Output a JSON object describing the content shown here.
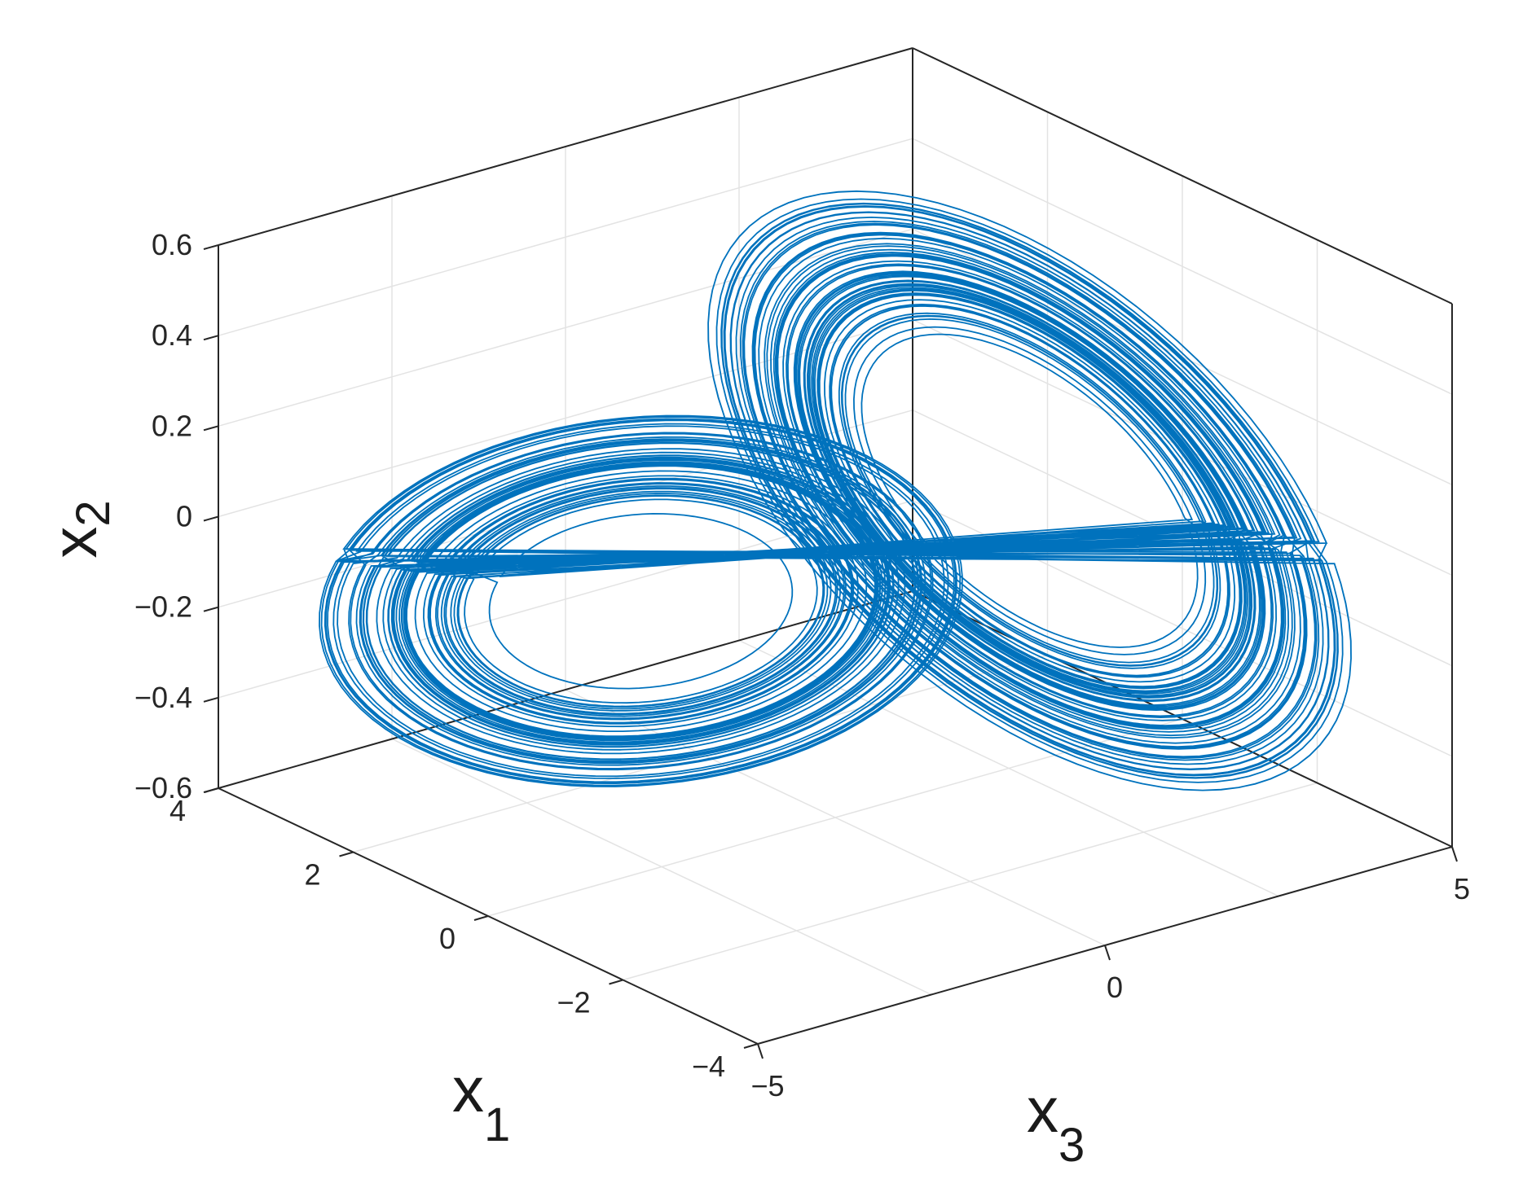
{
  "chart_data": {
    "type": "line",
    "title": "",
    "subtitle": "",
    "xlabel": {
      "main": "x",
      "sub": "1"
    },
    "ylabel": {
      "main": "x",
      "sub": "2"
    },
    "zlabel": {
      "main": "x",
      "sub": "3"
    },
    "x1_axis": {
      "label_main": "x",
      "label_sub": "1",
      "lim": [
        -4,
        4
      ],
      "ticks": [
        4,
        2,
        0,
        -2,
        -4
      ],
      "tick_labels": [
        "4",
        "2",
        "0",
        "−2",
        "−4"
      ]
    },
    "x2_axis": {
      "label_main": "x",
      "label_sub": "2",
      "lim": [
        -0.6,
        0.6
      ],
      "ticks": [
        0.6,
        0.4,
        0.2,
        0,
        -0.2,
        -0.4,
        -0.6
      ],
      "tick_labels": [
        "0.6",
        "0.4",
        "0.2",
        "0",
        "−0.2",
        "−0.4",
        "−0.6"
      ]
    },
    "x3_axis": {
      "label_main": "x",
      "label_sub": "3",
      "lim": [
        -5,
        5
      ],
      "ticks": [
        -5,
        0,
        5
      ],
      "tick_labels": [
        "−5",
        "0",
        "5"
      ]
    },
    "grid": true,
    "legend": "none",
    "line_color": "#0072BD",
    "series": [
      {
        "x1_range": [
          -3.6,
          3.6
        ],
        "x2_range": [
          -0.55,
          0.55
        ],
        "x3_range": [
          -4.4,
          4.4
        ],
        "wings": [
          {
            "center_x3": -2.8,
            "center_x2": 0.0,
            "loops": 26
          },
          {
            "center_x3": 2.8,
            "center_x2": 0.0,
            "loops": 26
          }
        ]
      }
    ]
  }
}
